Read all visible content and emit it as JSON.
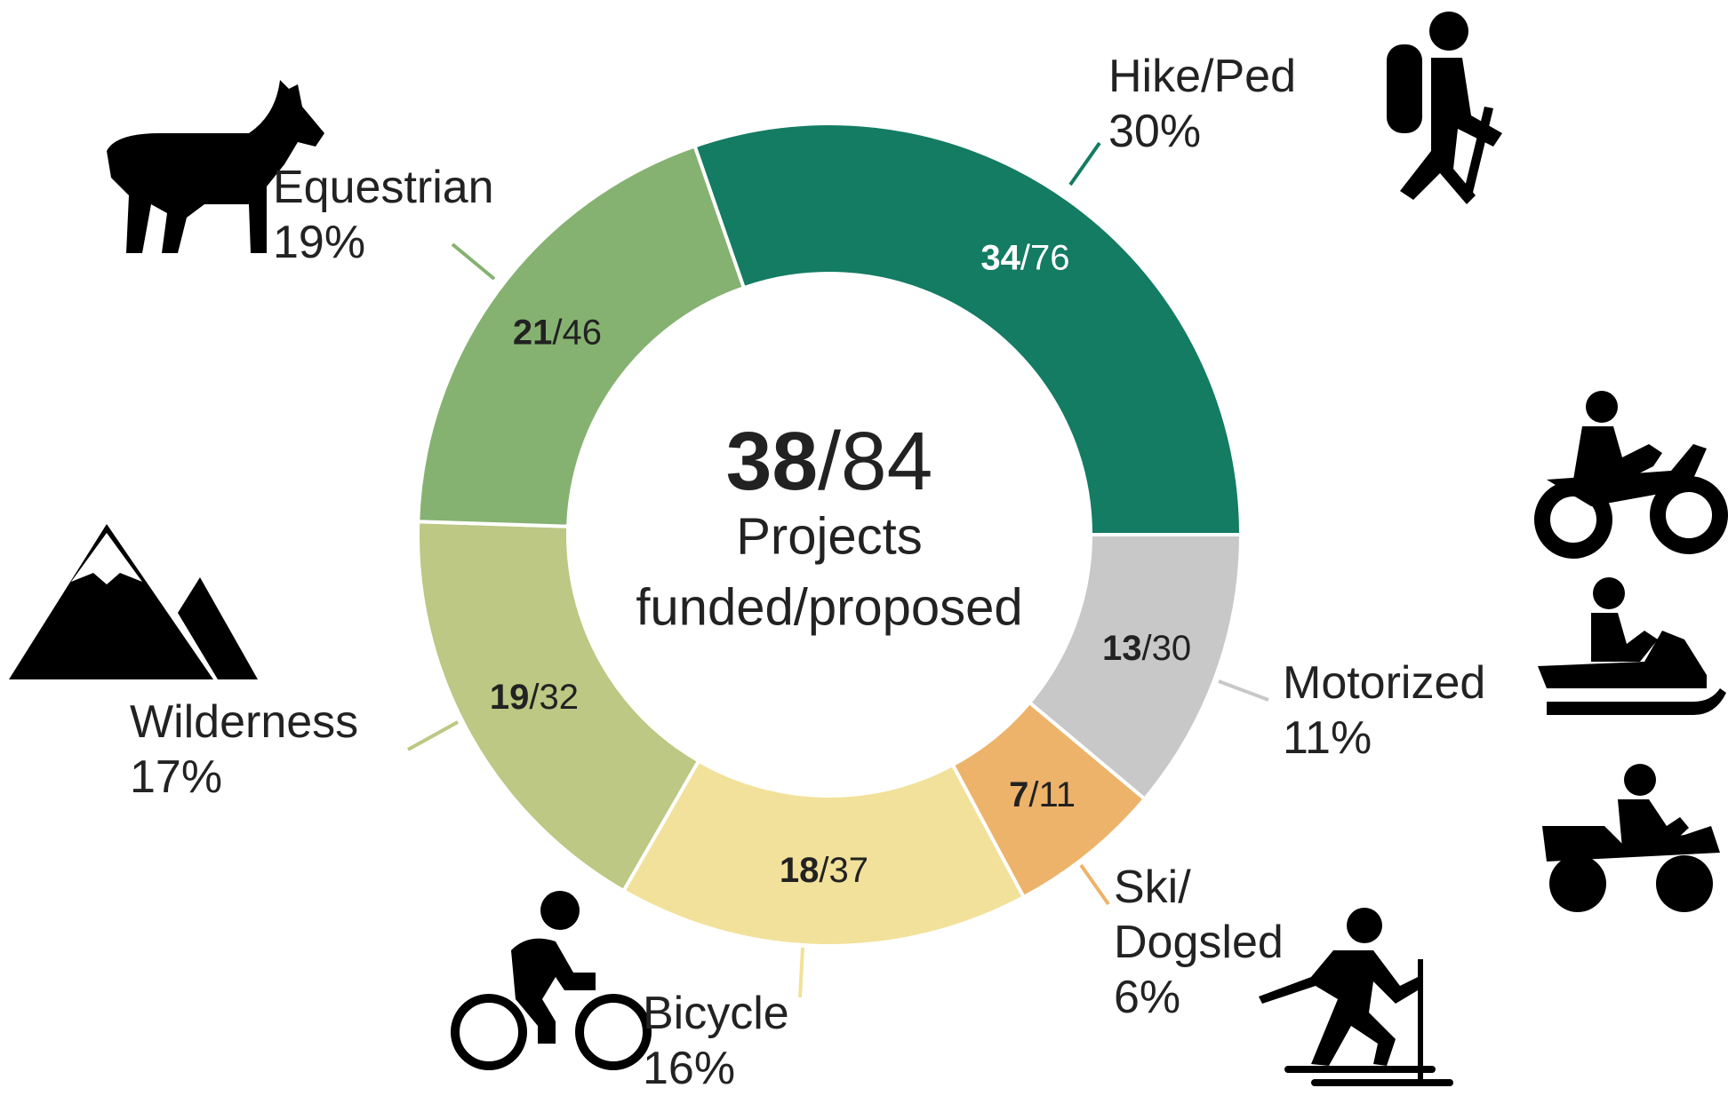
{
  "chart_data": {
    "type": "donut",
    "categories": [
      "Hike/Ped",
      "Motorized",
      "Ski/ Dogsled",
      "Bicycle",
      "Wilderness",
      "Equestrian"
    ],
    "values": [
      30,
      11,
      6,
      16,
      17,
      19
    ],
    "value_labels": [
      "30%",
      "11%",
      "6%",
      "16%",
      "17%",
      "19%"
    ],
    "colors": [
      "#137c63",
      "#c8c8c8",
      "#edb36a",
      "#f2e19a",
      "#bcc883",
      "#86b271"
    ],
    "funded": [
      34,
      13,
      7,
      18,
      19,
      21
    ],
    "proposed": [
      76,
      30,
      11,
      37,
      32,
      46
    ],
    "separator": "/",
    "center": {
      "funded": 38,
      "proposed": 84,
      "line1": "Projects",
      "line2": "funded/proposed"
    }
  }
}
